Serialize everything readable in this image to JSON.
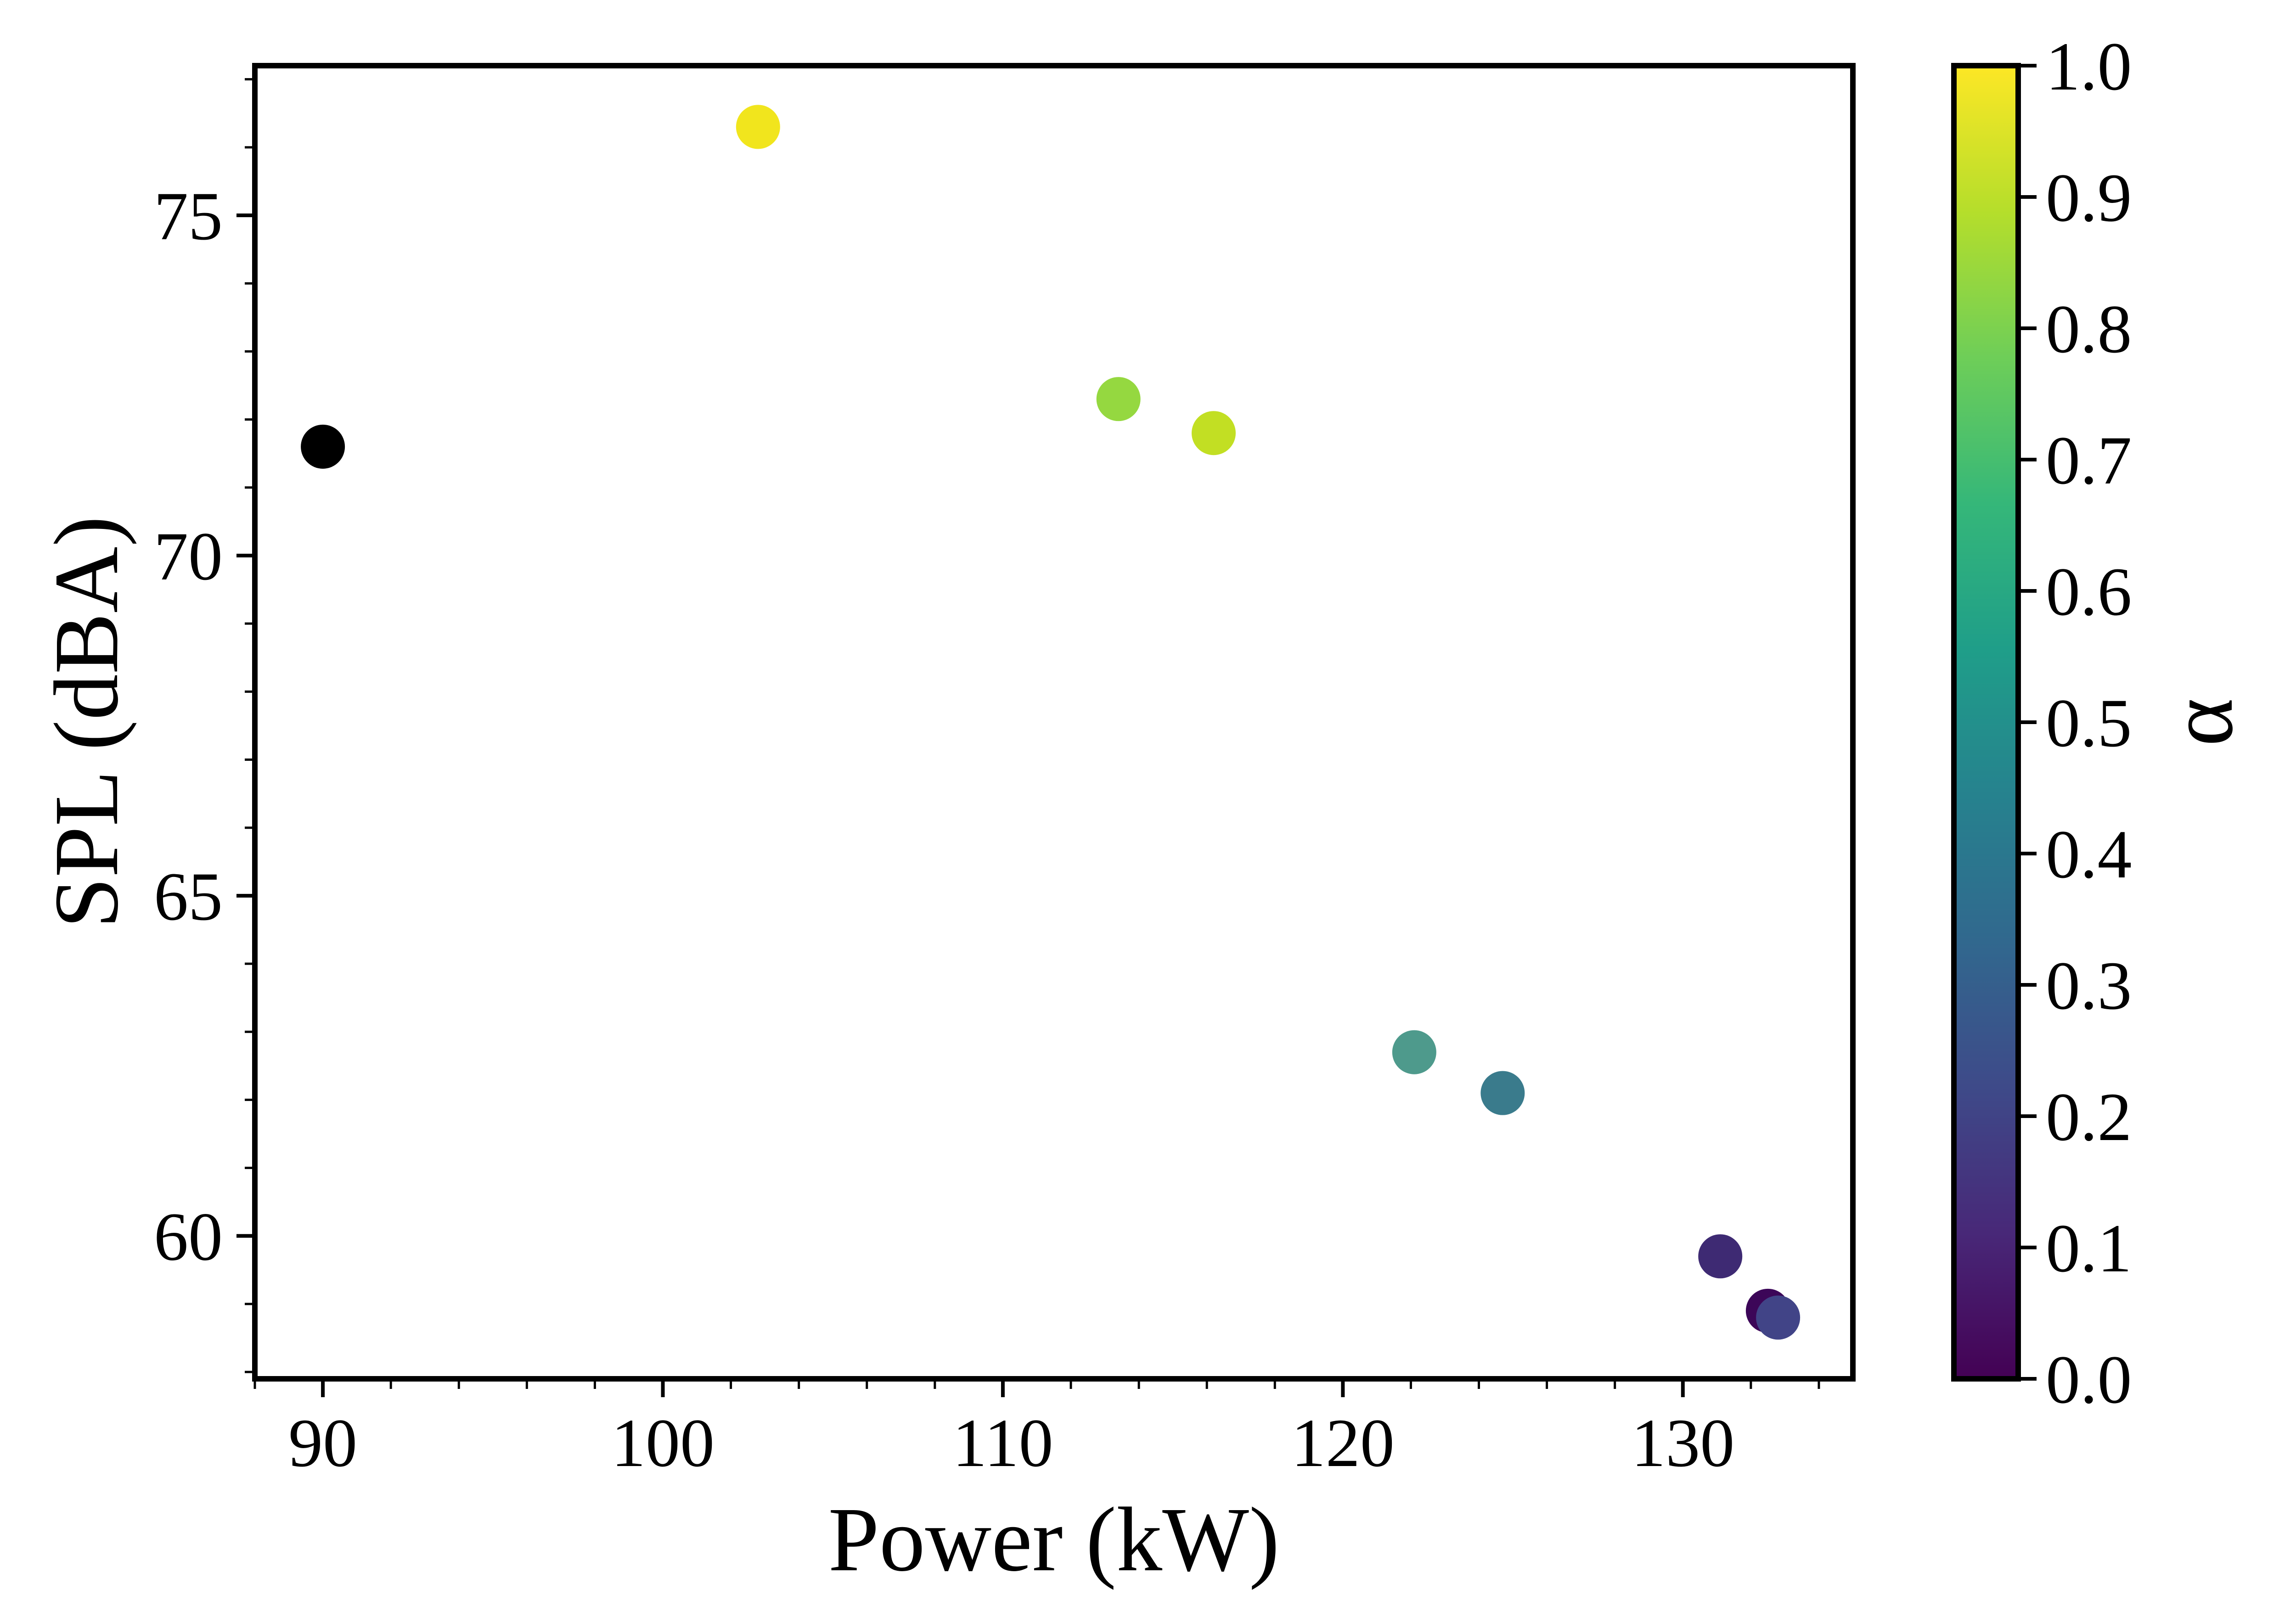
{
  "chart_data": {
    "type": "scatter",
    "xlabel": "Power (kW)",
    "ylabel": "SPL (dBA)",
    "xlim": [
      88,
      135
    ],
    "ylim": [
      57.9,
      77.2
    ],
    "x_ticks": [
      90,
      100,
      110,
      120,
      130
    ],
    "y_ticks": [
      60,
      65,
      70,
      75
    ],
    "grid": false,
    "points": [
      {
        "x": 90.0,
        "y": 71.6,
        "color": "#000000"
      },
      {
        "x": 102.8,
        "y": 76.3,
        "color": "#f1e51d"
      },
      {
        "x": 113.4,
        "y": 72.3,
        "color": "#95d840"
      },
      {
        "x": 116.2,
        "y": 71.8,
        "color": "#c2df23"
      },
      {
        "x": 122.1,
        "y": 62.7,
        "color": "#4e9a8c"
      },
      {
        "x": 124.7,
        "y": 62.1,
        "color": "#3a7b8c"
      },
      {
        "x": 131.1,
        "y": 59.7,
        "color": "#3e2a73"
      },
      {
        "x": 132.5,
        "y": 58.9,
        "color": "#3c0658"
      },
      {
        "x": 132.8,
        "y": 58.8,
        "color": "#414487"
      }
    ],
    "colorbar": {
      "label": "α",
      "range": [
        0.0,
        1.0
      ],
      "ticks": [
        "0.0",
        "0.1",
        "0.2",
        "0.3",
        "0.4",
        "0.5",
        "0.6",
        "0.7",
        "0.8",
        "0.9",
        "1.0"
      ],
      "colormap": [
        "#440154",
        "#482878",
        "#3e4a89",
        "#31688e",
        "#26828e",
        "#1f9e89",
        "#35b779",
        "#6ece58",
        "#b5de2b",
        "#fde725"
      ]
    }
  }
}
